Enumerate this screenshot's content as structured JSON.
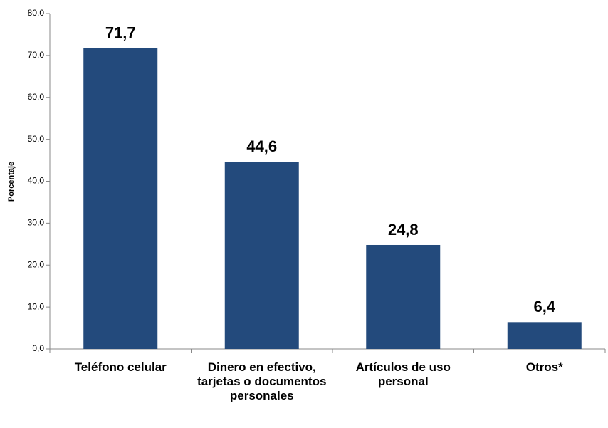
{
  "chart_data": {
    "type": "bar",
    "y_label": "Porcentaje",
    "categories": [
      "Teléfono celular",
      "Dinero en efectivo, tarjetas o documentos personales",
      "Artículos de uso personal",
      "Otros*"
    ],
    "values": [
      71.7,
      44.6,
      24.8,
      6.4
    ],
    "value_labels": [
      "71,7",
      "44,6",
      "24,8",
      "6,4"
    ],
    "color": "#234a7c",
    "ylim": [
      0,
      80
    ],
    "yticks": [
      {
        "value": 0,
        "label": "0,0"
      },
      {
        "value": 10,
        "label": "10,0"
      },
      {
        "value": 20,
        "label": "20,0"
      },
      {
        "value": 30,
        "label": "30,0"
      },
      {
        "value": 40,
        "label": "40,0"
      },
      {
        "value": 50,
        "label": "50,0"
      },
      {
        "value": 60,
        "label": "60,0"
      },
      {
        "value": 70,
        "label": "70,0"
      },
      {
        "value": 80,
        "label": "80,0"
      }
    ],
    "grid": false
  }
}
